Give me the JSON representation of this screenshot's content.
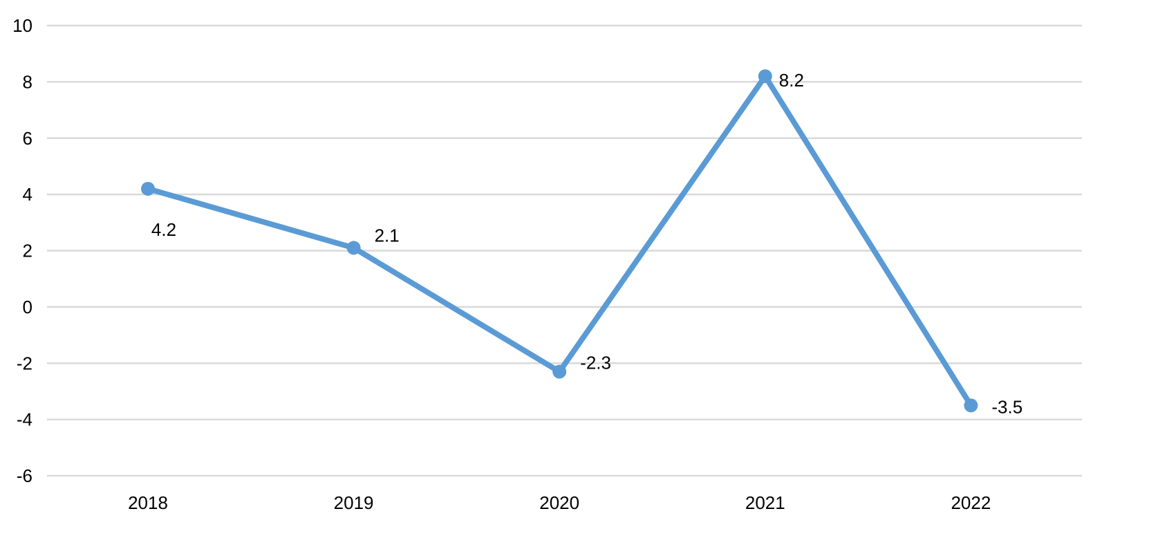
{
  "chart_data": {
    "type": "line",
    "title": "",
    "xlabel": "",
    "ylabel": "",
    "categories": [
      "2018",
      "2019",
      "2020",
      "2021",
      "2022"
    ],
    "series": [
      {
        "values": [
          4.2,
          2.1,
          -2.3,
          8.2,
          -3.5
        ],
        "data_labels": [
          "4.2",
          "2.1",
          "-2.3",
          "8.2",
          "-3.5"
        ],
        "color": "#5b9bd5",
        "marker": "circle"
      }
    ],
    "ylim": [
      -6,
      10
    ],
    "yticks": [
      10,
      8,
      6,
      4,
      2,
      0,
      -2,
      -4,
      -6
    ],
    "ytick_labels": [
      "10",
      "8",
      "6",
      "4",
      "2",
      "0",
      "-2",
      "-4",
      "-6"
    ],
    "grid": true,
    "legend": "none",
    "gridline_color": "#d9d9d9"
  }
}
